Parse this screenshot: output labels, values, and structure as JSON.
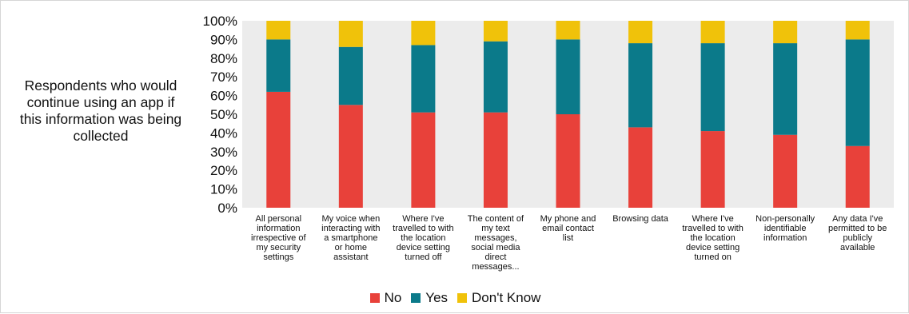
{
  "chart_data": {
    "type": "bar",
    "stacked": true,
    "percent_stacked": true,
    "side_label": "Respondents who would continue using an app if this information was being collected",
    "categories": [
      [
        "All personal",
        "information",
        "irrespective of",
        "my security",
        "settings"
      ],
      [
        "My voice when",
        "interacting with",
        "a smartphone",
        "or home",
        "assistant"
      ],
      [
        "Where I've",
        "travelled to with",
        "the location",
        "device setting",
        "turned off"
      ],
      [
        "The content of",
        "my text",
        "messages,",
        "social media",
        "direct",
        "messages..."
      ],
      [
        "My phone and",
        "email contact",
        "list"
      ],
      [
        "Browsing data"
      ],
      [
        "Where I've",
        "travelled to with",
        "the location",
        "device setting",
        "turned on"
      ],
      [
        "Non-personally",
        "identifiable",
        "information"
      ],
      [
        "Any data I've",
        "permitted to be",
        "publicly",
        "available"
      ]
    ],
    "series": [
      {
        "name": "No",
        "color": "#E8413A",
        "values": [
          62,
          55,
          51,
          51,
          50,
          43,
          41,
          39,
          33
        ]
      },
      {
        "name": "Yes",
        "color": "#0B7A8A",
        "values": [
          28,
          31,
          36,
          38,
          40,
          45,
          47,
          49,
          57
        ]
      },
      {
        "name": "Don't Know",
        "color": "#F0C20A",
        "values": [
          10,
          14,
          13,
          11,
          10,
          12,
          12,
          12,
          10
        ]
      }
    ],
    "y_ticks": [
      "0%",
      "10%",
      "20%",
      "30%",
      "40%",
      "50%",
      "60%",
      "70%",
      "80%",
      "90%",
      "100%"
    ],
    "ylim": [
      0,
      100
    ],
    "grid": false,
    "legend_position": "bottom"
  }
}
